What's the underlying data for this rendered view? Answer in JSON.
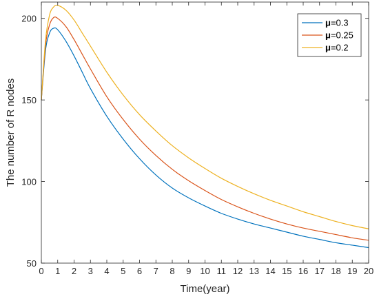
{
  "chart_data": {
    "type": "line",
    "title": "",
    "xlabel": "Time(year)",
    "ylabel": "The number of R nodes",
    "xlim": [
      0,
      20
    ],
    "ylim": [
      50,
      210
    ],
    "xticks": [
      0,
      1,
      2,
      3,
      4,
      5,
      6,
      7,
      8,
      9,
      10,
      11,
      12,
      13,
      14,
      15,
      16,
      17,
      18,
      19,
      20
    ],
    "yticks": [
      50,
      100,
      150,
      200
    ],
    "grid": false,
    "legend_position": "top-right",
    "legend_symbol": "μ",
    "x": [
      0,
      0.25,
      0.5,
      0.75,
      1,
      1.5,
      2,
      2.5,
      3,
      4,
      5,
      6,
      7,
      8,
      9,
      10,
      11,
      12,
      13,
      14,
      15,
      16,
      17,
      18,
      19,
      20
    ],
    "series": [
      {
        "name": "=0.3",
        "color": "#0072BD",
        "values": [
          150,
          180,
          191,
          194,
          193,
          186,
          177,
          167,
          157,
          140,
          126,
          114,
          104,
          96,
          90,
          85,
          80.5,
          77,
          74,
          71.5,
          69,
          66.5,
          64.5,
          62.5,
          61,
          59.5
        ]
      },
      {
        "name": "=0.25",
        "color": "#D95319",
        "values": [
          150,
          183,
          196,
          200.5,
          200,
          195,
          187,
          178,
          169,
          152,
          138,
          126,
          116,
          107.5,
          100.5,
          94.5,
          89,
          84.5,
          80.5,
          77,
          74,
          71.5,
          69.5,
          67.5,
          65.5,
          64
        ]
      },
      {
        "name": "=0.2",
        "color": "#EDB120",
        "values": [
          150,
          186,
          202,
          207,
          208,
          205,
          199,
          191,
          183,
          167,
          153,
          141,
          131,
          122,
          114.5,
          108,
          102,
          97,
          92.5,
          88.5,
          85,
          81.5,
          78.5,
          75.5,
          73,
          71
        ]
      }
    ]
  }
}
